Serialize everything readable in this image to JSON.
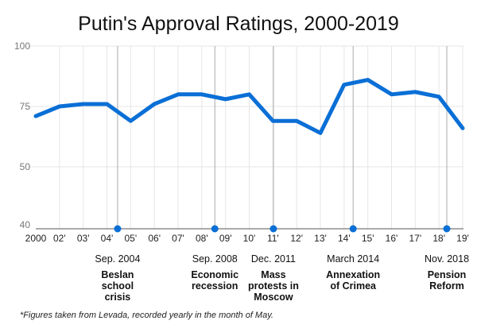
{
  "chart_data": {
    "type": "line",
    "title": "Putin's Approval Ratings, 2000-2019",
    "xlabel": "",
    "ylabel": "",
    "categories": [
      "2000",
      "02'",
      "03'",
      "04'",
      "05'",
      "06'",
      "07'",
      "08'",
      "09'",
      "10'",
      "11'",
      "12'",
      "13'",
      "14'",
      "15'",
      "16'",
      "17'",
      "18'",
      "19'"
    ],
    "series": [
      {
        "name": "Approval rating",
        "color": "#0a6fd6",
        "values": [
          71,
          75,
          76,
          76,
          69,
          76,
          80,
          80,
          78,
          80,
          69,
          69,
          64,
          84,
          86,
          80,
          81,
          79,
          66
        ]
      }
    ],
    "yticks": [
      100,
      75,
      50,
      40
    ],
    "ylim": [
      40,
      100
    ],
    "grid": true,
    "events": [
      {
        "date": "Sep. 2004",
        "lines": [
          "Beslan",
          "school",
          "crisis"
        ],
        "position_index": 3.45
      },
      {
        "date": "Sep. 2008",
        "lines": [
          "Economic",
          "recession"
        ],
        "position_index": 7.55
      },
      {
        "date": "Dec. 2011",
        "lines": [
          "Mass",
          "protests in",
          "Moscow"
        ],
        "position_index": 10.02
      },
      {
        "date": "March 2014",
        "lines": [
          "Annexation",
          "of Crimea"
        ],
        "position_index": 13.38
      },
      {
        "date": "Nov. 2018",
        "lines": [
          "Pension",
          "Reform"
        ],
        "position_index": 17.33
      }
    ],
    "footnote": "*Figures taken from Levada, recorded yearly in the month of May."
  }
}
